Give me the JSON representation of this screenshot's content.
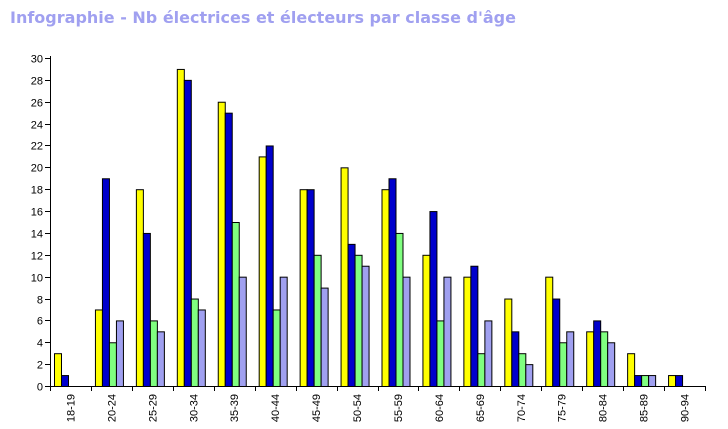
{
  "chart_data": {
    "type": "bar",
    "title": "Infographie - Nb électrices et électeurs par classe d'âge",
    "xlabel": "",
    "ylabel": "",
    "ylim": [
      0,
      30
    ],
    "yticks": [
      0,
      2,
      4,
      6,
      8,
      10,
      12,
      14,
      16,
      18,
      20,
      22,
      24,
      26,
      28,
      30
    ],
    "grid": false,
    "legend": "none",
    "categories": [
      "18-19",
      "20-24",
      "25-29",
      "30-34",
      "35-39",
      "40-44",
      "45-49",
      "50-54",
      "55-59",
      "60-64",
      "65-69",
      "70-74",
      "75-79",
      "80-84",
      "85-89",
      "90-94"
    ],
    "series": [
      {
        "color": "#ffff00",
        "values": [
          3,
          7,
          18,
          29,
          26,
          21,
          18,
          20,
          18,
          12,
          10,
          8,
          10,
          5,
          3,
          1
        ]
      },
      {
        "color": "#0000cc",
        "values": [
          1,
          19,
          14,
          28,
          25,
          22,
          18,
          13,
          19,
          16,
          11,
          5,
          8,
          6,
          1,
          1
        ]
      },
      {
        "color": "#80ff80",
        "values": [
          0,
          4,
          6,
          8,
          15,
          7,
          12,
          12,
          14,
          6,
          3,
          3,
          4,
          5,
          1,
          0
        ]
      },
      {
        "color": "#a0a0f0",
        "values": [
          0,
          6,
          5,
          7,
          10,
          10,
          9,
          11,
          10,
          10,
          6,
          2,
          5,
          4,
          1,
          0
        ]
      }
    ]
  }
}
